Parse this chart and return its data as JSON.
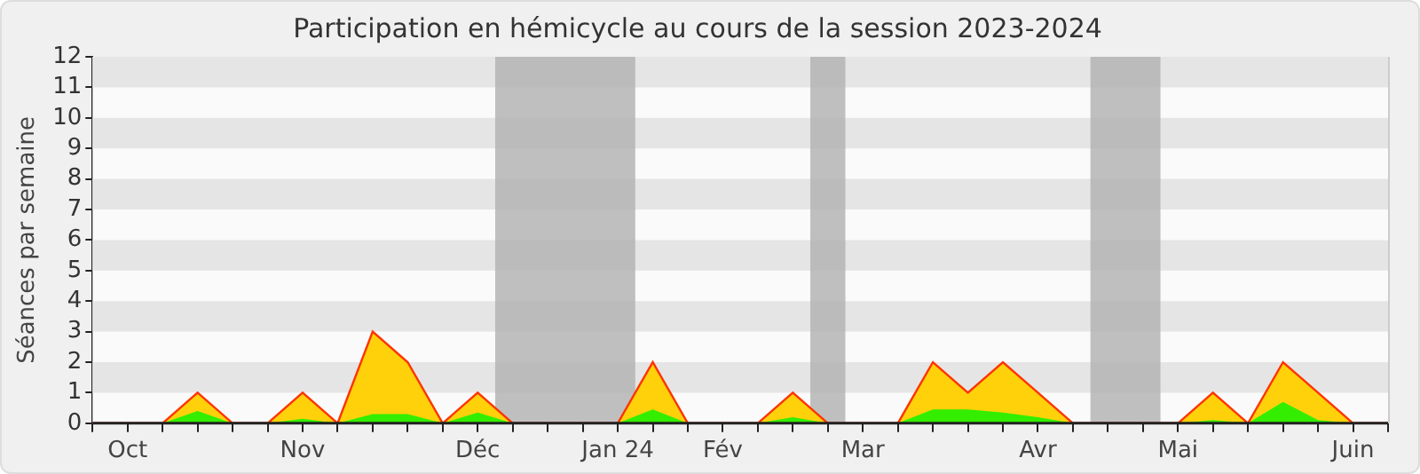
{
  "chart_data": {
    "type": "area",
    "title": "Participation en hémicycle au cours de la session 2023-2024",
    "ylabel": "Séances par semaine",
    "x": [
      "2023-09-29",
      "2023-10-06",
      "2023-10-13",
      "2023-10-20",
      "2023-10-27",
      "2023-11-03",
      "2023-11-10",
      "2023-11-17",
      "2023-11-24",
      "2023-12-01",
      "2023-12-08",
      "2023-12-15",
      "2023-12-22",
      "2023-12-29",
      "2024-01-05",
      "2024-01-12",
      "2024-01-19",
      "2024-01-26",
      "2024-02-02",
      "2024-02-09",
      "2024-02-16",
      "2024-02-23",
      "2024-03-01",
      "2024-03-08",
      "2024-03-15",
      "2024-03-22",
      "2024-03-29",
      "2024-04-05",
      "2024-04-12",
      "2024-04-19",
      "2024-04-26",
      "2024-05-03",
      "2024-05-10",
      "2024-05-17",
      "2024-05-24",
      "2024-05-31",
      "2024-06-07",
      "2024-06-14"
    ],
    "series": [
      {
        "color": "#ffd10a",
        "values": [
          0,
          0,
          0,
          1,
          0,
          0,
          1,
          0,
          3,
          2,
          0,
          1,
          0,
          0,
          0,
          0,
          2,
          0,
          0,
          0,
          1,
          0,
          0,
          0,
          2,
          1,
          2,
          1,
          0,
          0,
          0,
          0,
          1,
          0,
          2,
          1,
          0,
          0
        ]
      },
      {
        "color": "#33ee00",
        "values": [
          0,
          0,
          0,
          0.4,
          0,
          0,
          0.15,
          0,
          0.3,
          0.3,
          0,
          0.35,
          0,
          0,
          0,
          0,
          0.45,
          0,
          0,
          0,
          0.2,
          0,
          0,
          0,
          0.45,
          0.45,
          0.35,
          0.2,
          0,
          0,
          0,
          0,
          0.1,
          0,
          0.7,
          0.1,
          0,
          0
        ]
      }
    ],
    "xlim": [
      "2023-09-29",
      "2024-06-14"
    ],
    "xticks": [
      {
        "value": "2023-09-29",
        "label": null
      },
      {
        "value": "2023-10-06",
        "label": "Oct"
      },
      {
        "value": "2023-10-13",
        "label": null
      },
      {
        "value": "2023-10-20",
        "label": null
      },
      {
        "value": "2023-10-27",
        "label": null
      },
      {
        "value": "2023-11-03",
        "label": null
      },
      {
        "value": "2023-11-10",
        "label": "Nov"
      },
      {
        "value": "2023-11-17",
        "label": null
      },
      {
        "value": "2023-11-24",
        "label": null
      },
      {
        "value": "2023-12-01",
        "label": null
      },
      {
        "value": "2023-12-08",
        "label": null
      },
      {
        "value": "2023-12-15",
        "label": "Déc"
      },
      {
        "value": "2023-12-22",
        "label": null
      },
      {
        "value": "2023-12-29",
        "label": null
      },
      {
        "value": "2024-01-05",
        "label": null
      },
      {
        "value": "2024-01-12",
        "label": "Jan 24"
      },
      {
        "value": "2024-01-19",
        "label": null
      },
      {
        "value": "2024-01-26",
        "label": null
      },
      {
        "value": "2024-02-02",
        "label": "Fév"
      },
      {
        "value": "2024-02-09",
        "label": null
      },
      {
        "value": "2024-02-16",
        "label": null
      },
      {
        "value": "2024-02-23",
        "label": null
      },
      {
        "value": "2024-03-01",
        "label": "Mar"
      },
      {
        "value": "2024-03-08",
        "label": null
      },
      {
        "value": "2024-03-15",
        "label": null
      },
      {
        "value": "2024-03-22",
        "label": null
      },
      {
        "value": "2024-03-29",
        "label": null
      },
      {
        "value": "2024-04-05",
        "label": "Avr"
      },
      {
        "value": "2024-04-12",
        "label": null
      },
      {
        "value": "2024-04-19",
        "label": null
      },
      {
        "value": "2024-04-26",
        "label": null
      },
      {
        "value": "2024-05-03",
        "label": "Mai"
      },
      {
        "value": "2024-05-10",
        "label": null
      },
      {
        "value": "2024-05-17",
        "label": null
      },
      {
        "value": "2024-05-24",
        "label": null
      },
      {
        "value": "2024-05-31",
        "label": null
      },
      {
        "value": "2024-06-07",
        "label": "Juin"
      },
      {
        "value": "2024-06-14",
        "label": null
      }
    ],
    "ylim": [
      0,
      12
    ],
    "yticks": [
      0,
      1,
      2,
      3,
      4,
      5,
      6,
      7,
      8,
      9,
      10,
      11,
      12
    ],
    "legend": false,
    "bands": [
      {
        "axis": "x",
        "from": "2023-12-18T12:00",
        "to": "2024-01-15T12:00",
        "color": "#b0b0b0"
      },
      {
        "axis": "x",
        "from": "2024-02-19T12:00",
        "to": "2024-02-26T12:00",
        "color": "#b0b0b0"
      },
      {
        "axis": "x",
        "from": "2024-04-15T12:00",
        "to": "2024-04-29T12:00",
        "color": "#b0b0b0"
      }
    ]
  }
}
